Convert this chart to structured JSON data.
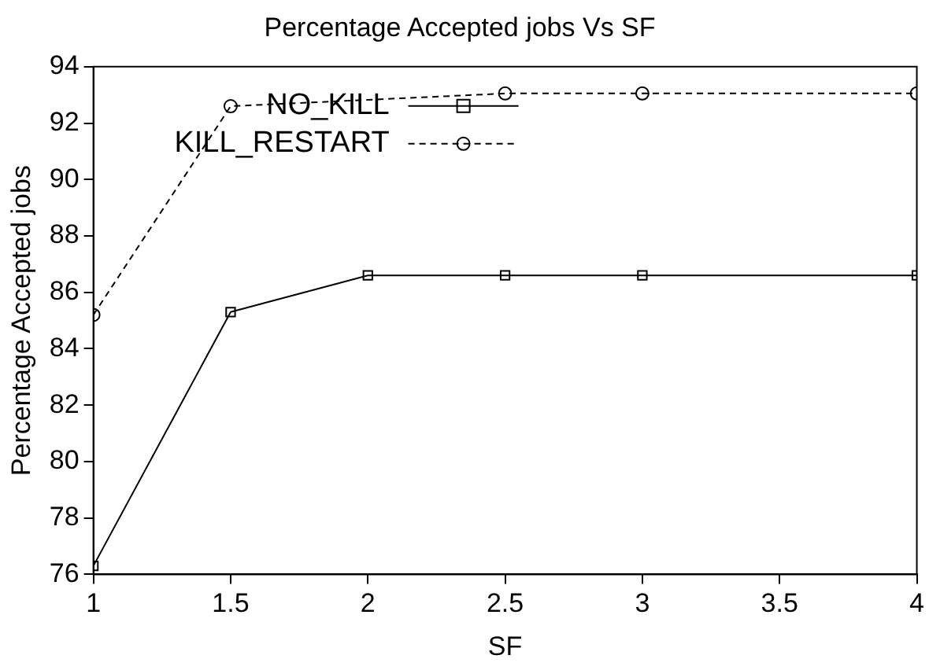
{
  "chart_data": {
    "type": "line",
    "title": "Percentage Accepted jobs Vs SF",
    "xlabel": "SF",
    "ylabel": "Percentage Accepted jobs",
    "x": [
      1,
      1.5,
      2,
      2.5,
      3,
      4
    ],
    "series": [
      {
        "name": "NO_KILL",
        "color": "#000000",
        "values": [
          76.3,
          85.3,
          86.6,
          86.6,
          86.6,
          86.6
        ],
        "marker": "square",
        "line_style": "solid"
      },
      {
        "name": "KILL_RESTART",
        "color": "#000000",
        "x": [
          1,
          1.5,
          2.5,
          3,
          4
        ],
        "values": [
          85.2,
          92.6,
          93.05,
          93.05,
          93.05
        ],
        "marker": "circle",
        "line_style": "dashed"
      }
    ],
    "xlim": [
      1,
      4
    ],
    "xticks": [
      1,
      1.5,
      2,
      2.5,
      3,
      3.5,
      4
    ],
    "ylim": [
      76,
      94
    ],
    "yticks": [
      76,
      78,
      80,
      82,
      84,
      86,
      88,
      90,
      92,
      94
    ],
    "grid": false,
    "legend": "top"
  }
}
